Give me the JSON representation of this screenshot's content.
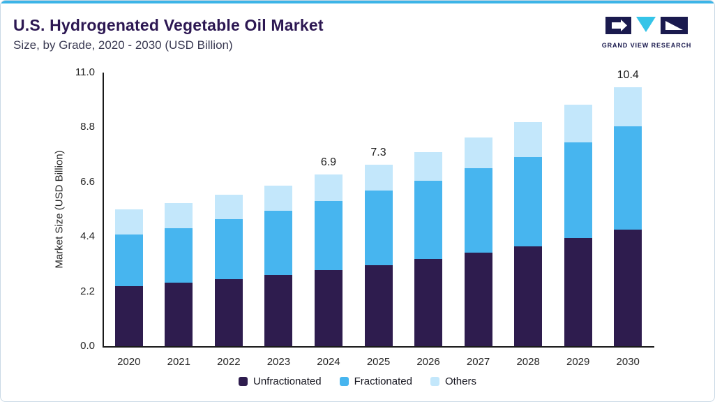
{
  "header": {
    "title": "U.S. Hydrogenated Vegetable Oil Market",
    "subtitle": "Size, by Grade, 2020 - 2030 (USD Billion)",
    "brand": "GRAND VIEW RESEARCH"
  },
  "colors": {
    "accent_line": "#3cb4e7",
    "title": "#2c1752",
    "axis": "#1a1a1a",
    "logo_navy": "#1a1a4e",
    "logo_cyan": "#35c4e8"
  },
  "chart_data": {
    "type": "bar",
    "stacked": true,
    "title": "U.S. Hydrogenated Vegetable Oil Market Size, by Grade, 2020 - 2030 (USD Billion)",
    "categories": [
      "2020",
      "2021",
      "2022",
      "2023",
      "2024",
      "2025",
      "2026",
      "2027",
      "2028",
      "2029",
      "2030"
    ],
    "series": [
      {
        "name": "Unfractionated",
        "color": "#2e1c4e",
        "values": [
          2.4,
          2.55,
          2.7,
          2.85,
          3.05,
          3.25,
          3.5,
          3.75,
          4.0,
          4.35,
          4.7
        ]
      },
      {
        "name": "Fractionated",
        "color": "#47b5ef",
        "values": [
          2.1,
          2.2,
          2.4,
          2.6,
          2.8,
          3.0,
          3.15,
          3.4,
          3.6,
          3.85,
          4.15
        ]
      },
      {
        "name": "Others",
        "color": "#c3e7fb",
        "values": [
          1.0,
          1.0,
          1.0,
          1.0,
          1.05,
          1.05,
          1.15,
          1.25,
          1.4,
          1.5,
          1.55
        ]
      }
    ],
    "totals": [
      5.5,
      5.75,
      6.1,
      6.45,
      6.9,
      7.3,
      7.8,
      8.4,
      9.0,
      9.7,
      10.4
    ],
    "total_labels": [
      "",
      "",
      "",
      "",
      "6.9",
      "7.3",
      "",
      "",
      "",
      "",
      "10.4"
    ],
    "xlabel": "",
    "ylabel": "Market Size (USD Billion)",
    "yticks": [
      "0.0",
      "2.2",
      "4.4",
      "6.6",
      "8.8",
      "11.0"
    ],
    "ylim": [
      0,
      11.0
    ],
    "grid": false,
    "legend_position": "bottom"
  }
}
